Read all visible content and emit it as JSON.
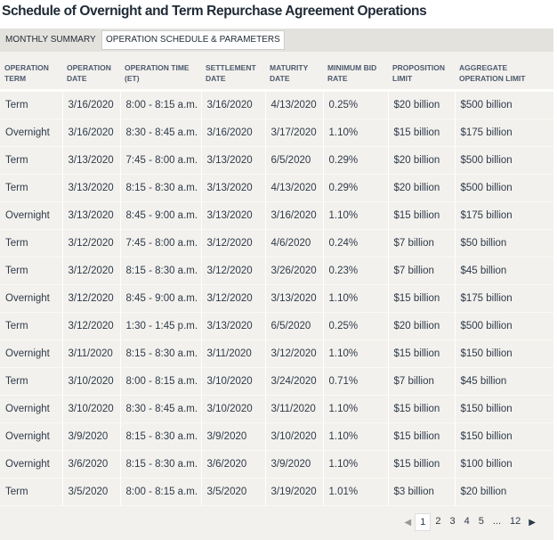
{
  "title": "Schedule of Overnight and Term Repurchase Agreement Operations",
  "tabs": [
    "MONTHLY SUMMARY",
    "OPERATION SCHEDULE & PARAMETERS"
  ],
  "table": {
    "columns": [
      "OPERATION TERM",
      "OPERATION DATE",
      "OPERATION TIME (ET)",
      "SETTLEMENT DATE",
      "MATURITY DATE",
      "MINIMUM BID RATE",
      "PROPOSITION LIMIT",
      "AGGREGATE OPERATION LIMIT"
    ],
    "rows": [
      [
        "Term",
        "3/16/2020",
        "8:00 - 8:15 a.m.",
        "3/16/2020",
        "4/13/2020",
        "0.25%",
        "$20 billion",
        "$500 billion"
      ],
      [
        "Overnight",
        "3/16/2020",
        "8:30 - 8:45 a.m.",
        "3/16/2020",
        "3/17/2020",
        "1.10%",
        "$15 billion",
        "$175 billion"
      ],
      [
        "Term",
        "3/13/2020",
        "7:45 - 8:00 a.m.",
        "3/13/2020",
        "6/5/2020",
        "0.29%",
        "$20 billion",
        "$500 billion"
      ],
      [
        "Term",
        "3/13/2020",
        "8:15 - 8:30 a.m.",
        "3/13/2020",
        "4/13/2020",
        "0.29%",
        "$20 billion",
        "$500 billion"
      ],
      [
        "Overnight",
        "3/13/2020",
        "8:45 - 9:00 a.m.",
        "3/13/2020",
        "3/16/2020",
        "1.10%",
        "$15 billion",
        "$175 billion"
      ],
      [
        "Term",
        "3/12/2020",
        "7:45 - 8:00 a.m.",
        "3/12/2020",
        "4/6/2020",
        "0.24%",
        "$7 billion",
        "$50 billion"
      ],
      [
        "Term",
        "3/12/2020",
        "8:15 - 8:30 a.m.",
        "3/12/2020",
        "3/26/2020",
        "0.23%",
        "$7 billion",
        "$45 billion"
      ],
      [
        "Overnight",
        "3/12/2020",
        "8:45 - 9:00 a.m.",
        "3/12/2020",
        "3/13/2020",
        "1.10%",
        "$15 billion",
        "$175 billion"
      ],
      [
        "Term",
        "3/12/2020",
        "1:30 - 1:45 p.m.",
        "3/13/2020",
        "6/5/2020",
        "0.25%",
        "$20 billion",
        "$500 billion"
      ],
      [
        "Overnight",
        "3/11/2020",
        "8:15 - 8:30 a.m.",
        "3/11/2020",
        "3/12/2020",
        "1.10%",
        "$15 billion",
        "$150 billion"
      ],
      [
        "Term",
        "3/10/2020",
        "8:00 - 8:15 a.m.",
        "3/10/2020",
        "3/24/2020",
        "0.71%",
        "$7 billion",
        "$45 billion"
      ],
      [
        "Overnight",
        "3/10/2020",
        "8:30 - 8:45 a.m.",
        "3/10/2020",
        "3/11/2020",
        "1.10%",
        "$15 billion",
        "$150 billion"
      ],
      [
        "Overnight",
        "3/9/2020",
        "8:15 - 8:30 a.m.",
        "3/9/2020",
        "3/10/2020",
        "1.10%",
        "$15 billion",
        "$150 billion"
      ],
      [
        "Overnight",
        "3/6/2020",
        "8:15 - 8:30 a.m.",
        "3/6/2020",
        "3/9/2020",
        "1.10%",
        "$15 billion",
        "$100 billion"
      ],
      [
        "Term",
        "3/5/2020",
        "8:00 - 8:15 a.m.",
        "3/5/2020",
        "3/19/2020",
        "1.01%",
        "$3 billion",
        "$20 billion"
      ]
    ]
  },
  "pagination": {
    "pages": [
      "1",
      "2",
      "3",
      "4",
      "5",
      "...",
      "12"
    ]
  }
}
